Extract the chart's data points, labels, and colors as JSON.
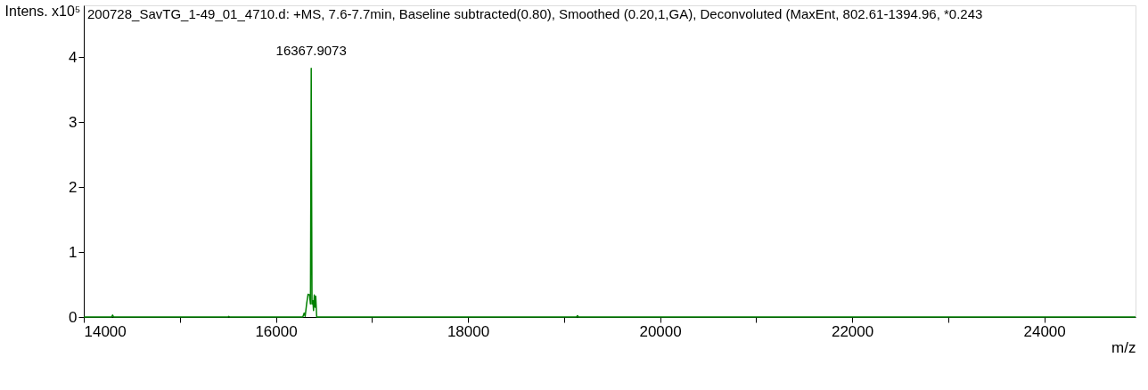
{
  "chart_data": {
    "type": "line",
    "title": "200728_SavTG_1-49_01_4710.d: +MS, 7.6-7.7min, Baseline subtracted(0.80), Smoothed (0.20,1,GA), Deconvoluted (MaxEnt, 802.61-1394.96, *0.243",
    "xlabel": "m/z",
    "ylabel": "Intens. x10⁵",
    "x": [
      14000,
      14290,
      14300,
      14310,
      15500,
      15510,
      15520,
      16280,
      16295,
      16305,
      16320,
      16335,
      16350,
      16360,
      16368,
      16376,
      16385,
      16392,
      16400,
      16408,
      16415,
      16425,
      19130,
      19140,
      19150,
      24950
    ],
    "series": [
      {
        "color": "#008000",
        "values": [
          0,
          0,
          0.03,
          0,
          0,
          0.01,
          0,
          0,
          0.06,
          0.01,
          0.2,
          0.35,
          0.34,
          0.2,
          3.83,
          0.2,
          0.25,
          0.1,
          0.34,
          0.15,
          0.32,
          0,
          0,
          0.02,
          0,
          0
        ]
      }
    ],
    "annotations": [
      {
        "text": "16367.9073",
        "x": 16367.9073,
        "y": 3.83
      }
    ],
    "xlim": [
      14000,
      24950
    ],
    "xticks": [
      14000,
      {
        "value": 15000,
        "label": null
      },
      16000,
      {
        "value": 17000,
        "label": null
      },
      18000,
      {
        "value": 19000,
        "label": null
      },
      20000,
      {
        "value": 21000,
        "label": null
      },
      22000,
      {
        "value": 23000,
        "label": null
      },
      24000
    ],
    "ylim": [
      0,
      4.8
    ],
    "yticks": [
      0,
      1,
      2,
      3,
      4
    ],
    "grid": false,
    "marker": "none",
    "line_style": "solid"
  }
}
